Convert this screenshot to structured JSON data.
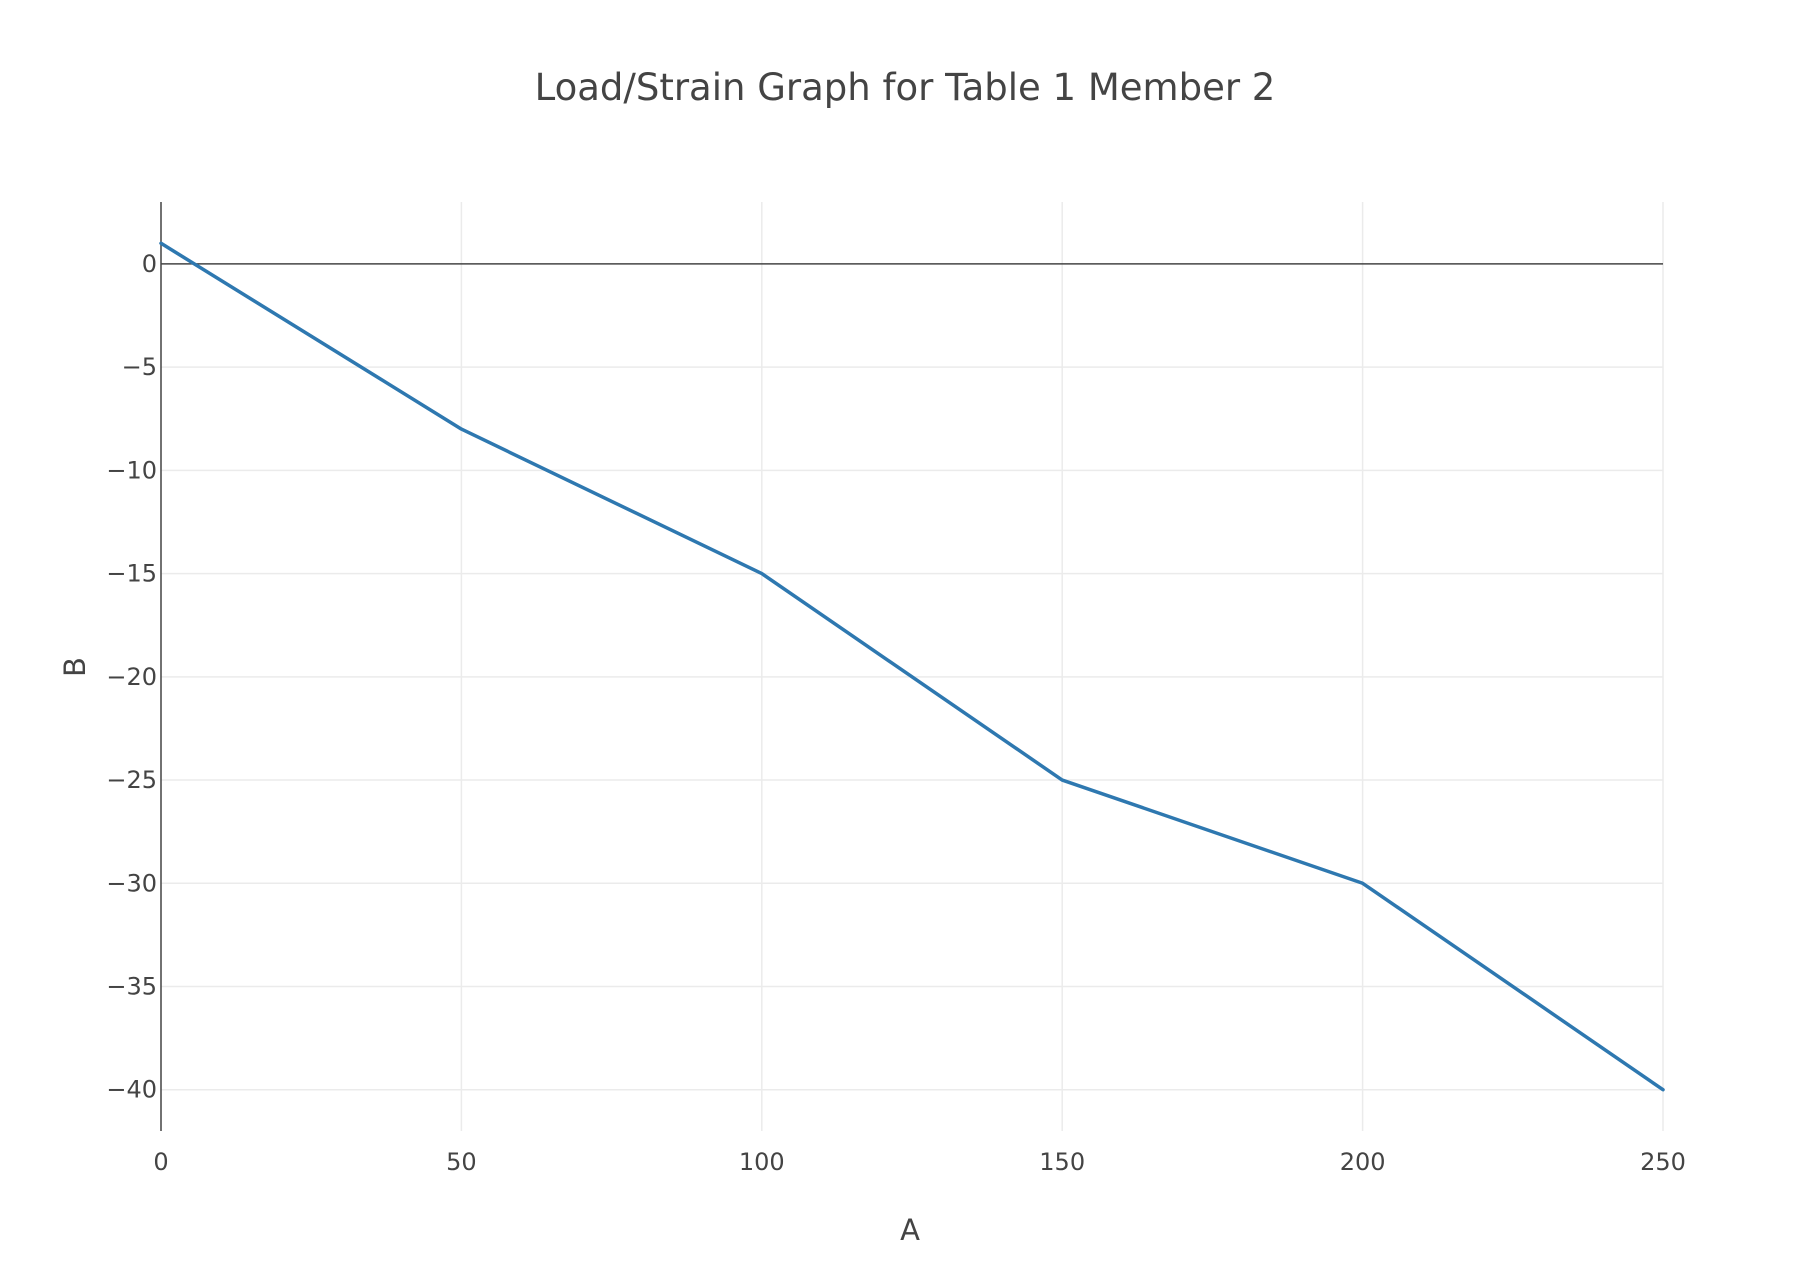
{
  "chart_data": {
    "type": "line",
    "title": "Load/Strain Graph for Table 1 Member 2",
    "xlabel": "A",
    "ylabel": "B",
    "xlim": [
      0,
      250
    ],
    "ylim": [
      -42,
      3
    ],
    "x_ticks": [
      0,
      50,
      100,
      150,
      200,
      250
    ],
    "y_ticks": [
      0,
      -5,
      -10,
      -15,
      -20,
      -25,
      -30,
      -35,
      -40
    ],
    "x_tick_labels": [
      "0",
      "50",
      "100",
      "150",
      "200",
      "250"
    ],
    "y_tick_labels": [
      "0",
      "−5",
      "−10",
      "−15",
      "−20",
      "−25",
      "−30",
      "−35",
      "−40"
    ],
    "grid": true,
    "series": [
      {
        "color": "#2e78b0",
        "x": [
          0,
          50,
          100,
          150,
          200,
          250
        ],
        "y": [
          1,
          -8,
          -15,
          -25,
          -30,
          -40
        ]
      }
    ]
  }
}
